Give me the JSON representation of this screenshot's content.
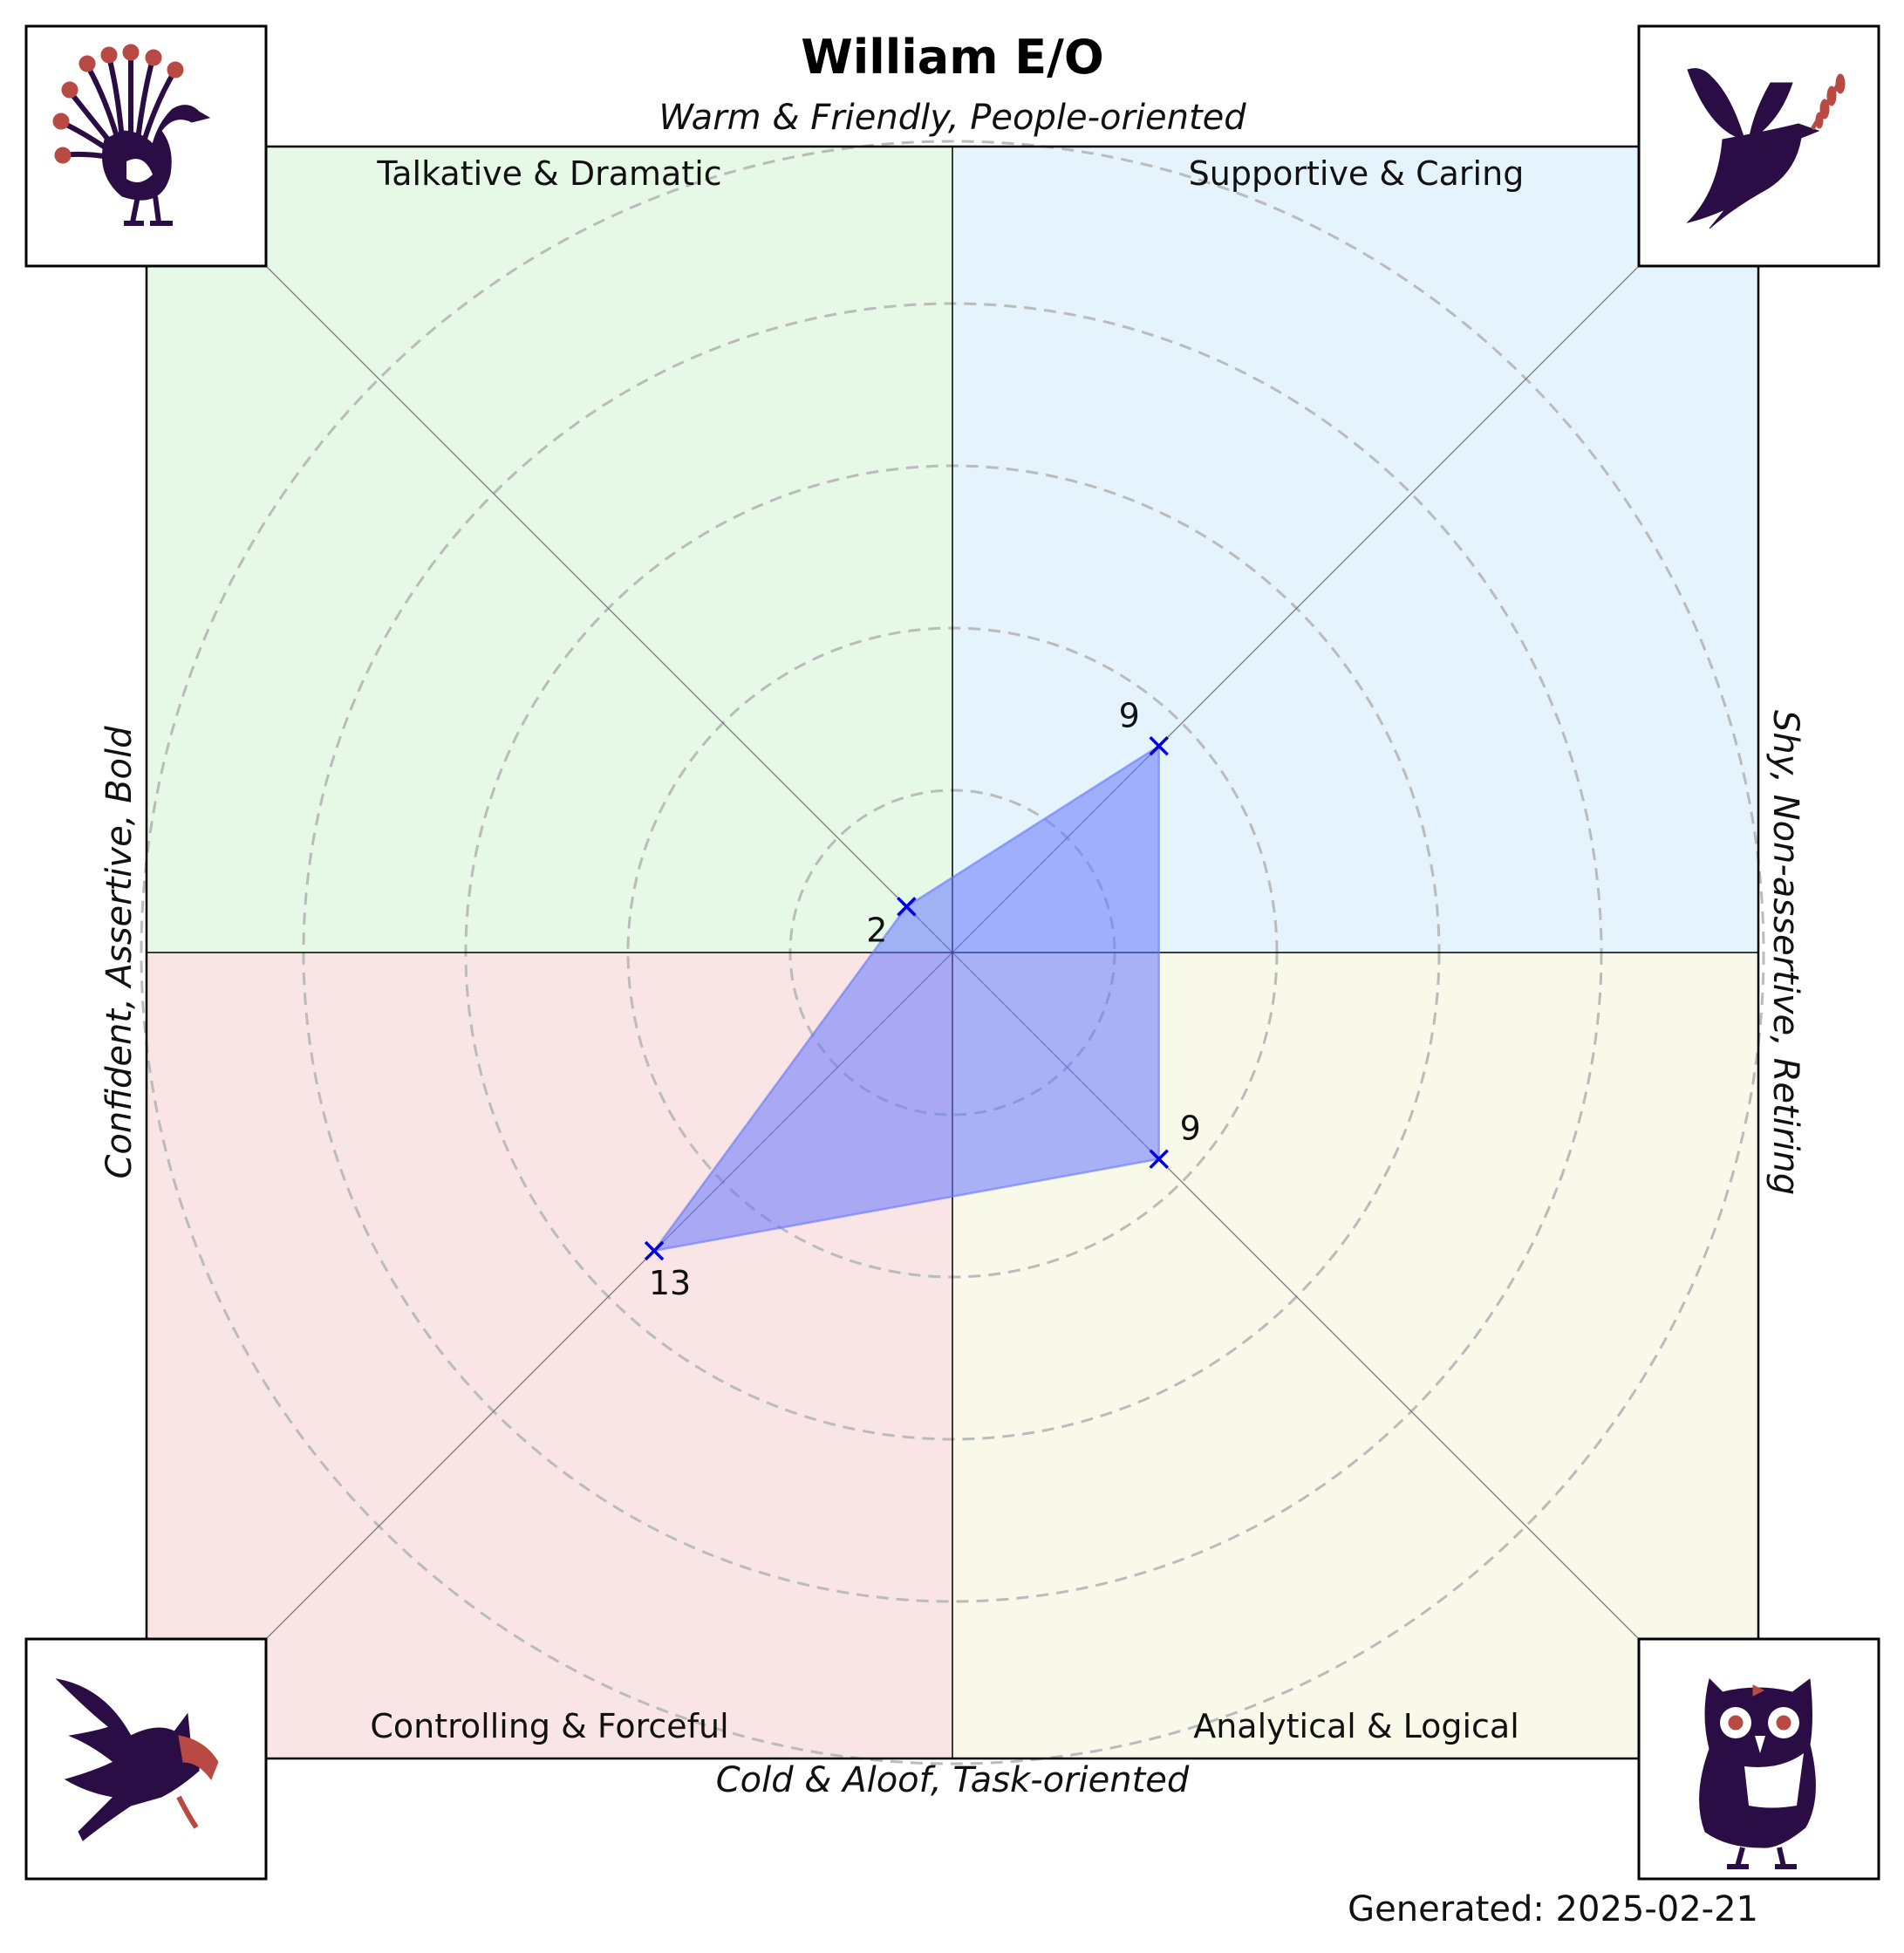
{
  "title": "William E/O",
  "axis_labels": {
    "top": "Warm & Friendly, People-oriented",
    "bottom": "Cold & Aloof, Task-oriented",
    "left": "Confident, Assertive, Bold",
    "right": "Shy, Non-assertive, Retiring"
  },
  "quadrants": [
    {
      "key": "top-left",
      "label": "Talkative & Dramatic",
      "color": "#e6f8e6",
      "icon": "peacock-icon"
    },
    {
      "key": "top-right",
      "label": "Supportive & Caring",
      "color": "#e5f3fc",
      "icon": "dove-icon"
    },
    {
      "key": "bottom-left",
      "label": "Controlling & Forceful",
      "color": "#f9e5e5",
      "icon": "eagle-icon"
    },
    {
      "key": "bottom-right",
      "label": "Analytical & Logical",
      "color": "#f9f9ea",
      "icon": "owl-icon"
    }
  ],
  "footer": "Generated: 2025-02-21",
  "colors": {
    "fill": "#6677ff",
    "marker": "#0000e0",
    "grid": "#bbbbbb",
    "icon_dark": "#2b0d45",
    "icon_accent": "#b84a43"
  },
  "chart_data": {
    "type": "radar",
    "axis_range": [
      0,
      25
    ],
    "grid": "dashed concentric circles every 5",
    "categories": [
      "Talkative & Dramatic",
      "Supportive & Caring",
      "Analytical & Logical",
      "Controlling & Forceful"
    ],
    "values": [
      2,
      9,
      9,
      13
    ],
    "value_labels": [
      "2",
      "9",
      "9",
      "13"
    ]
  }
}
